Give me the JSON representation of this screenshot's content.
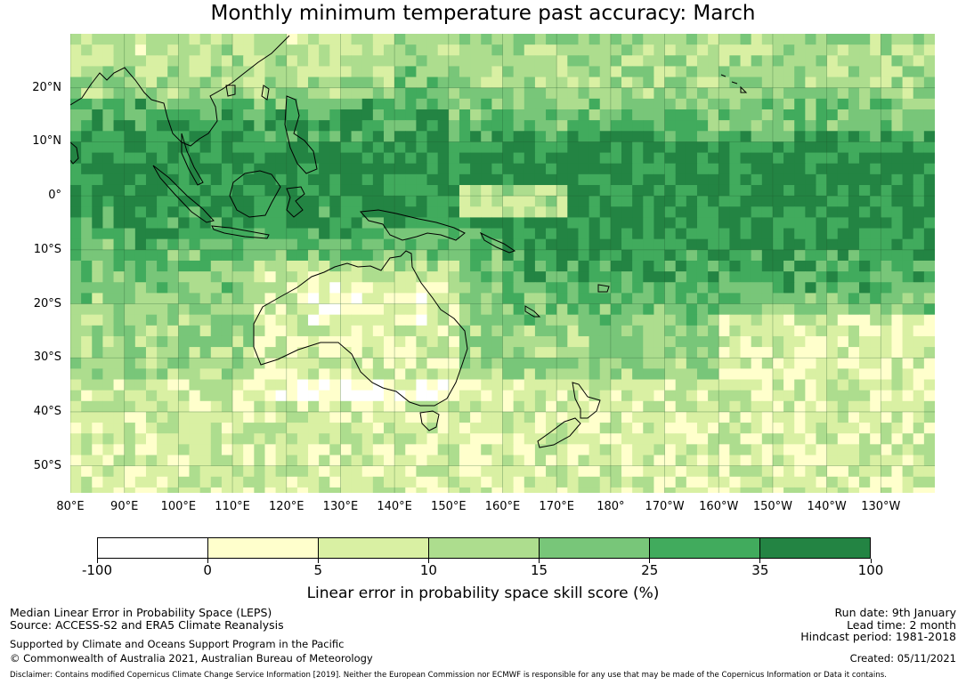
{
  "title": "Monthly minimum temperature past accuracy: March",
  "map": {
    "lat_labels": [
      "20°N",
      "10°N",
      "0°",
      "10°S",
      "20°S",
      "30°S",
      "40°S",
      "50°S"
    ],
    "lon_labels": [
      "80°E",
      "90°E",
      "100°E",
      "110°E",
      "120°E",
      "130°E",
      "140°E",
      "150°E",
      "160°E",
      "170°E",
      "180°",
      "170°W",
      "160°W",
      "150°W",
      "140°W",
      "130°W"
    ],
    "extent": {
      "lon_min": 80,
      "lon_max": 240,
      "lat_min": -55,
      "lat_max": 30
    },
    "regions": [
      "Australia",
      "New Zealand",
      "Indonesia",
      "Papua New Guinea",
      "Philippines",
      "Southeast Asia",
      "Pacific Ocean",
      "Indian Ocean"
    ]
  },
  "colorbar": {
    "ticks": [
      "-100",
      "0",
      "5",
      "10",
      "15",
      "25",
      "35",
      "100"
    ],
    "colors": [
      "#ffffff",
      "#ffffcc",
      "#d9f0a3",
      "#addd8e",
      "#78c679",
      "#41ab5d",
      "#238443"
    ],
    "label": "Linear error in probability space skill score (%)"
  },
  "footer": {
    "left1": "Median Linear Error in Probability Space (LEPS)",
    "left2": "Source: ACCESS-S2 and ERA5 Climate Reanalysis",
    "left3": "Supported by Climate and Oceans Support Program in the Pacific",
    "left4": "© Commonwealth of Australia 2021, Australian Bureau of Meteorology",
    "right1": "Run date: 9th January",
    "right2": "Lead time: 2 month",
    "right3": "Hindcast period: 1981-2018",
    "right4": "Created: 05/11/2021",
    "disclaimer": "Disclaimer: Contains modified Copernicus Climate Change Service Information [2019]. Neither the European Commission nor ECMWF is responsible for any use that may be made of the Copernicus Information or Data it contains."
  }
}
